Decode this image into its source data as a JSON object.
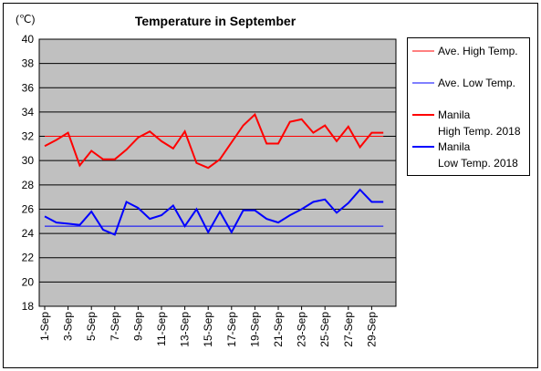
{
  "chart_data": {
    "type": "line",
    "title": "Temperature in September",
    "ylabel": "(℃)",
    "ylim": [
      18,
      40
    ],
    "yticks": [
      18,
      20,
      22,
      24,
      26,
      28,
      30,
      32,
      34,
      36,
      38,
      40
    ],
    "x": [
      1,
      2,
      3,
      4,
      5,
      6,
      7,
      8,
      9,
      10,
      11,
      12,
      13,
      14,
      15,
      16,
      17,
      18,
      19,
      20,
      21,
      22,
      23,
      24,
      25,
      26,
      27,
      28,
      29,
      30
    ],
    "xtick_labels": [
      "1-Sep",
      "3-Sep",
      "5-Sep",
      "7-Sep",
      "9-Sep",
      "11-Sep",
      "13-Sep",
      "15-Sep",
      "17-Sep",
      "19-Sep",
      "21-Sep",
      "23-Sep",
      "25-Sep",
      "27-Sep",
      "29-Sep"
    ],
    "xtick_positions": [
      1,
      3,
      5,
      7,
      9,
      11,
      13,
      15,
      17,
      19,
      21,
      23,
      25,
      27,
      29
    ],
    "grid": true,
    "legend_position": "right",
    "series": [
      {
        "name": "Ave. High Temp.",
        "color": "#ff0000",
        "style": "thin",
        "values": [
          32,
          32,
          32,
          32,
          32,
          32,
          32,
          32,
          32,
          32,
          32,
          32,
          32,
          32,
          32,
          32,
          32,
          32,
          32,
          32,
          32,
          32,
          32,
          32,
          32,
          32,
          32,
          32,
          32,
          32
        ]
      },
      {
        "name": "Ave. Low Temp.",
        "color": "#0000ff",
        "style": "thin",
        "values": [
          24.6,
          24.6,
          24.6,
          24.6,
          24.6,
          24.6,
          24.6,
          24.6,
          24.6,
          24.6,
          24.6,
          24.6,
          24.6,
          24.6,
          24.6,
          24.6,
          24.6,
          24.6,
          24.6,
          24.6,
          24.6,
          24.6,
          24.6,
          24.6,
          24.6,
          24.6,
          24.6,
          24.6,
          24.6,
          24.6
        ]
      },
      {
        "name": "Manila\nHigh Temp. 2018",
        "color": "#ff0000",
        "style": "thick",
        "values": [
          31.2,
          31.7,
          32.3,
          29.6,
          30.8,
          30.1,
          30.1,
          30.9,
          31.9,
          32.4,
          31.6,
          31.0,
          32.4,
          29.8,
          29.4,
          30.1,
          31.5,
          32.9,
          33.8,
          31.4,
          31.4,
          33.2,
          33.4,
          32.3,
          32.9,
          31.6,
          32.8,
          31.1,
          32.3,
          32.3
        ]
      },
      {
        "name": "Manila\nLow Temp. 2018",
        "color": "#0000ff",
        "style": "thick",
        "values": [
          25.4,
          24.9,
          24.8,
          24.7,
          25.8,
          24.3,
          23.9,
          26.6,
          26.1,
          25.2,
          25.5,
          26.3,
          24.6,
          26.0,
          24.1,
          25.8,
          24.1,
          25.9,
          25.9,
          25.2,
          24.9,
          25.5,
          26.0,
          26.6,
          26.8,
          25.7,
          26.5,
          27.6,
          26.6,
          26.6
        ]
      }
    ]
  }
}
